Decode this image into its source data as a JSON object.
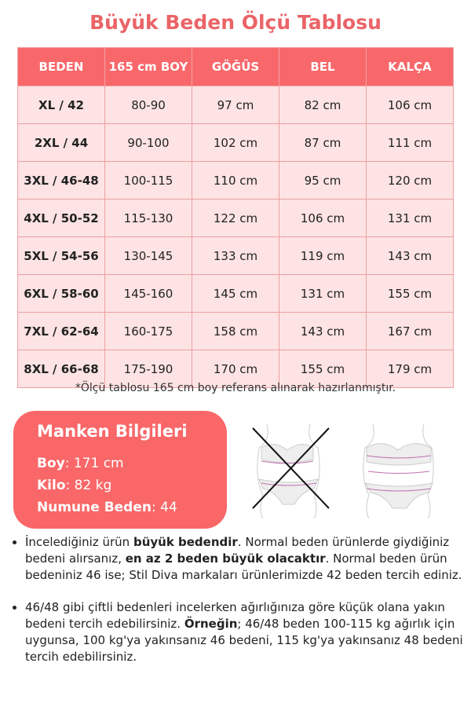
{
  "title": "Büyük Beden Ölçü Tablosu",
  "table": {
    "headers": [
      "BEDEN",
      "165 cm BOY",
      "GÖĞÜS",
      "BEL",
      "KALÇA"
    ],
    "rows": [
      [
        "XL / 42",
        "80-90",
        "97 cm",
        "82 cm",
        "106 cm"
      ],
      [
        "2XL / 44",
        "90-100",
        "102 cm",
        "87 cm",
        "111 cm"
      ],
      [
        "3XL / 46-48",
        "100-115",
        "110 cm",
        "95 cm",
        "120 cm"
      ],
      [
        "4XL / 50-52",
        "115-130",
        "122 cm",
        "106 cm",
        "131 cm"
      ],
      [
        "5XL / 54-56",
        "130-145",
        "133 cm",
        "119 cm",
        "143 cm"
      ],
      [
        "6XL / 58-60",
        "145-160",
        "145 cm",
        "131 cm",
        "155 cm"
      ],
      [
        "7XL / 62-64",
        "160-175",
        "158 cm",
        "143 cm",
        "167 cm"
      ],
      [
        "8XL / 66-68",
        "175-190",
        "170 cm",
        "155 cm",
        "179 cm"
      ]
    ]
  },
  "note": "*Ölçü tablosu 165 cm boy referans alınarak hazırlanmıştır.",
  "model": {
    "title": "Manken Bilgileri",
    "boy_label": "Boy",
    "boy": ": 171 cm",
    "kilo_label": "Kilo",
    "kilo": ": 82 kg",
    "beden_label": "Numune Beden",
    "beden": ": 44"
  },
  "bullets": [
    {
      "t1": "İncelediğiniz ürün ",
      "b1": "büyük bedendir",
      "t2": ". Normal beden ürünlerde giydiğiniz bedeni alırsanız, ",
      "b2": "en az 2 beden büyük olacaktır",
      "t3": ". Normal beden ürün bedeniniz 46 ise; Stil Diva markaları ürünlerimizde 42 beden tercih ediniz."
    },
    {
      "t1": "46/48 gibi çiftli bedenleri incelerken ağırlığınıza göre küçük olana yakın bedeni tercih edebilirsiniz. ",
      "b1": "Örneğin",
      "t2": "; 46/48 beden 100-115 kg ağırlık için uygunsa, 100 kg'ya yakınsanız 46 bedeni, 115 kg'ya yakınsanız 48 bedeni tercih edebilirsiniz.",
      "b2": "",
      "t3": ""
    }
  ],
  "colors": {
    "accent": "#f8686b",
    "row": "#fde3e3"
  }
}
